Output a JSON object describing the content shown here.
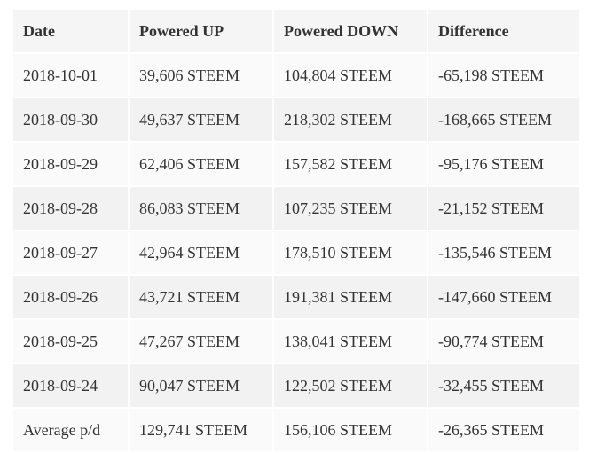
{
  "table": {
    "headers": [
      "Date",
      "Powered UP",
      "Powered DOWN",
      "Difference"
    ],
    "rows": [
      [
        "2018-10-01",
        "39,606 STEEM",
        "104,804 STEEM",
        "-65,198 STEEM"
      ],
      [
        "2018-09-30",
        "49,637 STEEM",
        "218,302 STEEM",
        "-168,665 STEEM"
      ],
      [
        "2018-09-29",
        "62,406 STEEM",
        "157,582 STEEM",
        "-95,176 STEEM"
      ],
      [
        "2018-09-28",
        "86,083 STEEM",
        "107,235 STEEM",
        "-21,152 STEEM"
      ],
      [
        "2018-09-27",
        "42,964 STEEM",
        "178,510 STEEM",
        "-135,546 STEEM"
      ],
      [
        "2018-09-26",
        "43,721 STEEM",
        "191,381 STEEM",
        "-147,660 STEEM"
      ],
      [
        "2018-09-25",
        "47,267 STEEM",
        "138,041 STEEM",
        "-90,774 STEEM"
      ],
      [
        "2018-09-24",
        "90,047 STEEM",
        "122,502 STEEM",
        "-32,455 STEEM"
      ],
      [
        "Average p/d",
        "129,741 STEEM",
        "156,106 STEEM",
        "-26,365 STEEM"
      ]
    ]
  },
  "colors": {
    "header_bg": "#f5f5f5",
    "row_odd_bg": "#fafafa",
    "row_even_bg": "#f2f2f2",
    "text": "#333333"
  }
}
